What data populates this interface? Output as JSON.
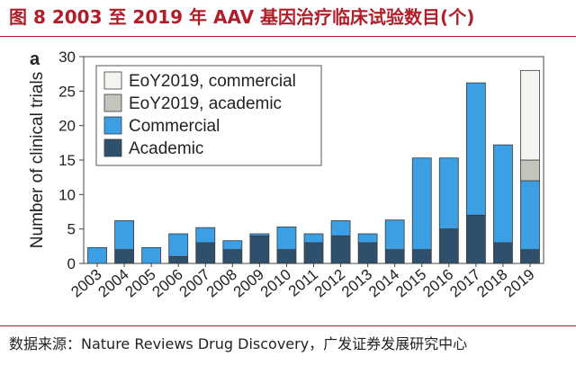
{
  "figure": {
    "title": "图 8 2003 至 2019 年 AAV 基因治疗临床试验数目(个)",
    "source": "数据来源：Nature Reviews Drug Discovery，广发证券发展研究中心"
  },
  "chart_data": {
    "type": "bar",
    "stacked": true,
    "panel_label": "a",
    "ylabel": "Number of clinical trials",
    "xlabel": "",
    "ylim": [
      0,
      30
    ],
    "yticks": [
      0,
      5,
      10,
      15,
      20,
      25,
      30
    ],
    "categories": [
      "2003",
      "2004",
      "2005",
      "2006",
      "2007",
      "2008",
      "2009",
      "2010",
      "2011",
      "2012",
      "2013",
      "2014",
      "2015",
      "2016",
      "2017",
      "2018",
      "2019"
    ],
    "series": [
      {
        "name": "Academic",
        "color": "#2e506c",
        "values": [
          0,
          2,
          0,
          1,
          3,
          2,
          4,
          2,
          3,
          4,
          3,
          2,
          2,
          5,
          7,
          3,
          2
        ]
      },
      {
        "name": "Commercial",
        "color": "#3c9ee3",
        "values": [
          2.3,
          4.2,
          2.3,
          3.3,
          2.2,
          1.3,
          0.3,
          3.3,
          1.3,
          2.2,
          1.3,
          4.3,
          13.3,
          10.3,
          19.2,
          14.2,
          10
        ]
      },
      {
        "name": "EoY2019, academic",
        "color": "#c4c4bc",
        "values": [
          0,
          0,
          0,
          0,
          0,
          0,
          0,
          0,
          0,
          0,
          0,
          0,
          0,
          0,
          0,
          0,
          3
        ]
      },
      {
        "name": "EoY2019, commercial",
        "color": "#f4f4f0",
        "values": [
          0,
          0,
          0,
          0,
          0,
          0,
          0,
          0,
          0,
          0,
          0,
          0,
          0,
          0,
          0,
          0,
          13
        ]
      }
    ],
    "legend": {
      "placement": "top-left",
      "order": [
        "EoY2019, commercial",
        "EoY2019, academic",
        "Commercial",
        "Academic"
      ]
    }
  }
}
